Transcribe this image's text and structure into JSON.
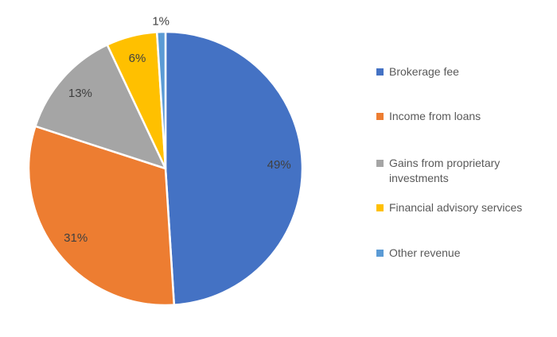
{
  "chart_data": {
    "type": "pie",
    "title": "",
    "categories": [
      "Brokerage fee",
      "Income from loans",
      "Gains from proprietary investments",
      "Financial advisory services",
      "Other revenue"
    ],
    "values": [
      49,
      31,
      13,
      6,
      1
    ],
    "data_labels": [
      "49%",
      "31%",
      "13%",
      "6%",
      "1%"
    ],
    "colors": [
      "#4472C4",
      "#ED7D31",
      "#A5A5A5",
      "#FFC000",
      "#5B9BD5"
    ],
    "start_angle_deg": 0,
    "direction": "clockwise",
    "slice_border_color": "#FFFFFF",
    "label_color": "#404040",
    "legend": {
      "position": "right",
      "text_color": "#595959",
      "items": [
        "Brokerage fee",
        "Income from loans",
        "Gains from proprietary investments",
        "Financial advisory services",
        "Other revenue"
      ]
    },
    "background": "#FFFFFF"
  }
}
